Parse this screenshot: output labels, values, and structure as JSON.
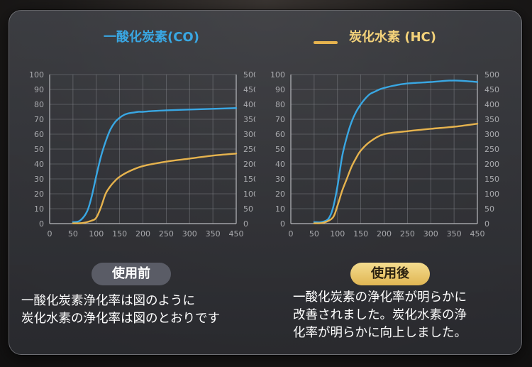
{
  "legend": {
    "co_label": "一酸化炭素(CO)",
    "hc_label": "炭化水素 (HC)",
    "co_color": "#39a7e3",
    "hc_color": "#e6b34e"
  },
  "chart_data": [
    {
      "type": "line",
      "panel": "使用前",
      "x_ticks": [
        "0",
        "50",
        "100",
        "150",
        "200",
        "250",
        "300",
        "350",
        "450"
      ],
      "y_left_ticks": [
        "0",
        "10",
        "20",
        "30",
        "40",
        "50",
        "60",
        "70",
        "80",
        "90",
        "100"
      ],
      "y_right_ticks": [
        "0",
        "50",
        "100",
        "150",
        "200",
        "250",
        "300",
        "350",
        "400",
        "450",
        "500"
      ],
      "ylim_left": [
        0,
        100
      ],
      "ylim_right": [
        0,
        500
      ],
      "grid": true,
      "series": [
        {
          "name": "一酸化炭素(CO)",
          "axis": "left",
          "color": "#39a7e3",
          "x": [
            50,
            65,
            80,
            90,
            100,
            110,
            120,
            130,
            140,
            150,
            160,
            170,
            180,
            190,
            200,
            220,
            250,
            300,
            350,
            400
          ],
          "y": [
            1,
            2,
            8,
            18,
            32,
            45,
            55,
            63,
            68,
            71,
            73,
            74,
            74.5,
            75,
            75,
            75.5,
            76,
            76.5,
            77,
            77.5
          ]
        },
        {
          "name": "炭化水素 (HC)",
          "axis": "right",
          "color": "#e6b34e",
          "x": [
            50,
            70,
            90,
            100,
            110,
            120,
            130,
            140,
            150,
            170,
            200,
            250,
            300,
            350,
            400
          ],
          "y": [
            1,
            2,
            10,
            20,
            55,
            100,
            125,
            143,
            157,
            175,
            193,
            208,
            218,
            228,
            235
          ]
        }
      ]
    },
    {
      "type": "line",
      "panel": "使用後",
      "x_ticks": [
        "0",
        "50",
        "100",
        "150",
        "200",
        "250",
        "300",
        "350",
        "450"
      ],
      "y_left_ticks": [
        "0",
        "10",
        "20",
        "30",
        "40",
        "50",
        "60",
        "70",
        "80",
        "90",
        "100"
      ],
      "y_right_ticks": [
        "0",
        "50",
        "100",
        "150",
        "200",
        "250",
        "300",
        "350",
        "400",
        "450",
        "500"
      ],
      "ylim_left": [
        0,
        100
      ],
      "ylim_right": [
        0,
        500
      ],
      "grid": true,
      "series": [
        {
          "name": "一酸化炭素(CO)",
          "axis": "left",
          "color": "#39a7e3",
          "x": [
            50,
            65,
            80,
            90,
            100,
            110,
            120,
            130,
            140,
            150,
            160,
            170,
            180,
            190,
            200,
            220,
            250,
            300,
            350,
            400
          ],
          "y": [
            1,
            1,
            3,
            10,
            25,
            45,
            58,
            68,
            75,
            80,
            84,
            87,
            88.5,
            90,
            91,
            92.5,
            94,
            95,
            96,
            95
          ]
        },
        {
          "name": "炭化水素 (HC)",
          "axis": "right",
          "color": "#e6b34e",
          "x": [
            50,
            70,
            90,
            100,
            110,
            120,
            130,
            140,
            150,
            170,
            200,
            250,
            300,
            350,
            400
          ],
          "y": [
            1,
            3,
            20,
            60,
            110,
            150,
            190,
            220,
            245,
            275,
            300,
            310,
            318,
            325,
            335
          ]
        }
      ]
    }
  ],
  "before": {
    "badge": "使用前",
    "text_line1": "一酸化炭素浄化率は図のように",
    "text_line2": "炭化水素の浄化率は図のとおりです"
  },
  "after": {
    "badge": "使用後",
    "text_line1": "一酸化炭素の浄化率が明らかに",
    "text_line2": "改善されました。炭化水素の浄",
    "text_line3": "化率が明らかに向上しました。"
  }
}
